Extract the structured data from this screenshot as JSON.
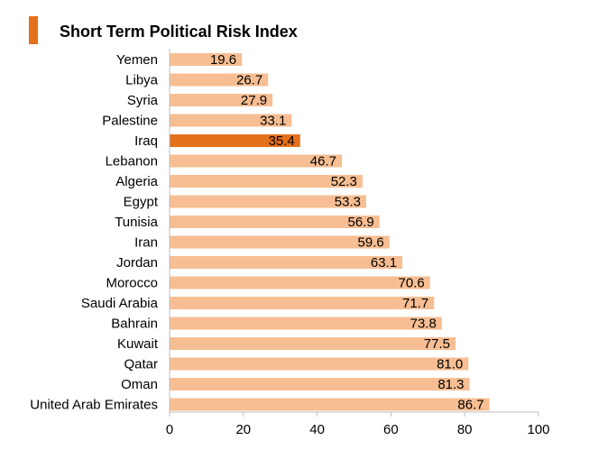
{
  "chart_data": {
    "type": "bar",
    "orientation": "horizontal",
    "title": "Short Term Political Risk Index",
    "categories": [
      "Yemen",
      "Libya",
      "Syria",
      "Palestine",
      "Iraq",
      "Lebanon",
      "Algeria",
      "Egypt",
      "Tunisia",
      "Iran",
      "Jordan",
      "Morocco",
      "Saudi Arabia",
      "Bahrain",
      "Kuwait",
      "Qatar",
      "Oman",
      "United Arab Emirates"
    ],
    "values": [
      19.6,
      26.7,
      27.9,
      33.1,
      35.4,
      46.7,
      52.3,
      53.3,
      56.9,
      59.6,
      63.1,
      70.6,
      71.7,
      73.8,
      77.5,
      81.0,
      81.3,
      86.7
    ],
    "value_labels": [
      "19.6",
      "26.7",
      "27.9",
      "33.1",
      "35.4",
      "46.7",
      "52.3",
      "53.3",
      "56.9",
      "59.6",
      "63.1",
      "70.6",
      "71.7",
      "73.8",
      "77.5",
      "81.0",
      "81.3",
      "86.7"
    ],
    "xlim": [
      0,
      100
    ],
    "xticks": [
      "0",
      "20",
      "40",
      "60",
      "80",
      "100"
    ],
    "highlight_category": "Iraq",
    "colors": {
      "accent": "#E3701A",
      "bar": "#F6BE92",
      "highlight_bar": "#E3701A",
      "axis": "#BFBFBF",
      "text": "#000000"
    },
    "grid": false,
    "legend": "none"
  }
}
